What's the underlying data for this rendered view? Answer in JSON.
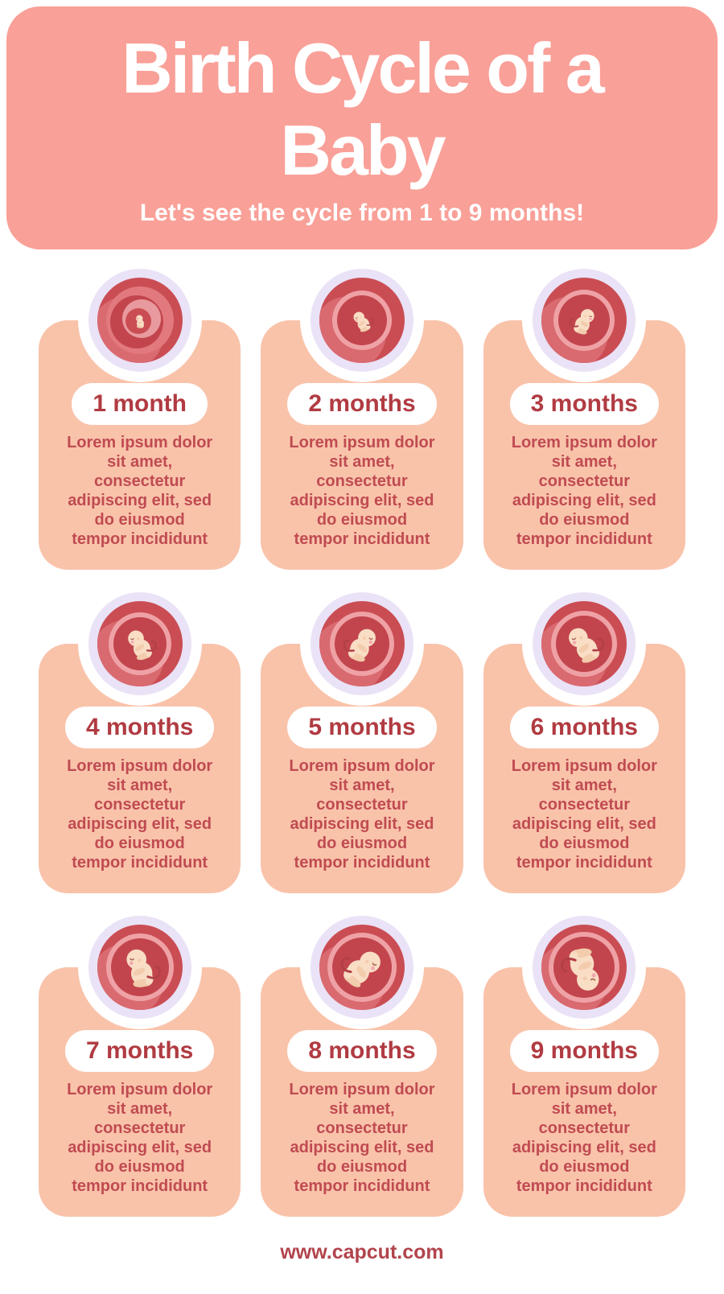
{
  "poster": {
    "header": {
      "title": "Birth Cycle of a\nBaby",
      "subtitle": "Let's see the cycle from 1 to 9 months!"
    },
    "cards": [
      {
        "label": "1 month",
        "body": "Lorem ipsum dolor\nsit amet,\nconsectetur\nadipiscing elit, sed\ndo eiusmod\ntempor incididunt",
        "illustration": "embryo-1-month"
      },
      {
        "label": "2 months",
        "body": "Lorem ipsum dolor\nsit amet,\nconsectetur\nadipiscing elit, sed\ndo eiusmod\ntempor incididunt",
        "illustration": "fetus-2-months"
      },
      {
        "label": "3 months",
        "body": "Lorem ipsum dolor\nsit amet,\nconsectetur\nadipiscing elit, sed\ndo eiusmod\ntempor incididunt",
        "illustration": "fetus-3-months"
      },
      {
        "label": "4 months",
        "body": "Lorem ipsum dolor\nsit amet,\nconsectetur\nadipiscing elit, sed\ndo eiusmod\ntempor incididunt",
        "illustration": "fetus-4-months"
      },
      {
        "label": "5 months",
        "body": "Lorem ipsum dolor\nsit amet,\nconsectetur\nadipiscing elit, sed\ndo eiusmod\ntempor incididunt",
        "illustration": "fetus-5-months"
      },
      {
        "label": "6 months",
        "body": "Lorem ipsum dolor\nsit amet,\nconsectetur\nadipiscing elit, sed\ndo eiusmod\ntempor incididunt",
        "illustration": "fetus-6-months"
      },
      {
        "label": "7 months",
        "body": "Lorem ipsum dolor\nsit amet,\nconsectetur\nadipiscing elit, sed\ndo eiusmod\ntempor incididunt",
        "illustration": "fetus-7-months"
      },
      {
        "label": "8 months",
        "body": "Lorem ipsum dolor\nsit amet,\nconsectetur\nadipiscing elit, sed\ndo eiusmod\ntempor incididunt",
        "illustration": "fetus-8-months"
      },
      {
        "label": "9 months",
        "body": "Lorem ipsum dolor\nsit amet,\nconsectetur\nadipiscing elit, sed\ndo eiusmod\ntempor incididunt",
        "illustration": "fetus-9-months"
      }
    ],
    "footer": {
      "website": "www.capcut.com"
    },
    "colors": {
      "header_bg": "#F9A098",
      "card_bg": "#F9C3AA",
      "title_text": "#FFFFFF",
      "label_text": "#B13B42",
      "body_text": "#C04B52",
      "footer_text": "#B2444C",
      "ring": "#EAE2F6",
      "womb_dark": "#CA4D54",
      "womb_mid": "#D96A70",
      "sac_light": "#EFA2A6",
      "sac_dark": "#C2454D",
      "skin": "#F9DDC5",
      "skin_shade": "#F2CCAC",
      "cheek": "#F3A8B0",
      "cord": "#B23F48"
    }
  }
}
